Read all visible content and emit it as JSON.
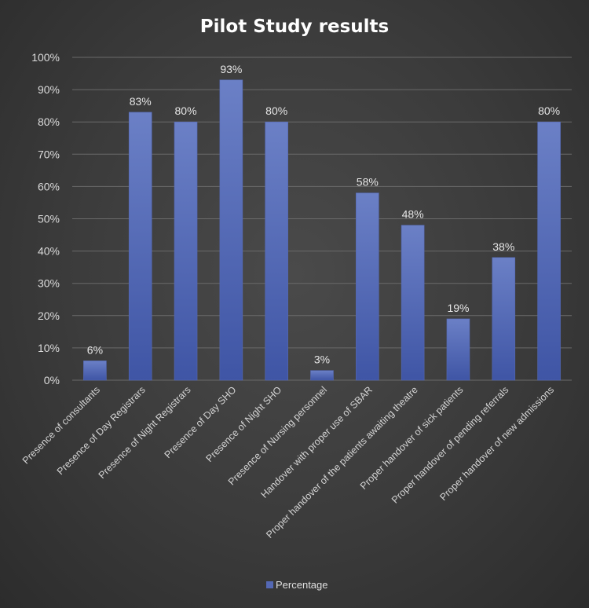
{
  "chart_data": {
    "type": "bar",
    "title": "Pilot Study results",
    "categories": [
      "Presence of consultants",
      "Presence of Day Registrars",
      "Presence of Night Registrars",
      "Presence of Day SHO",
      "Presence of Night SHO",
      "Presence of Nursing personnel",
      "Handover with proper use of SBAR",
      "Proper handover of the patients awaiting theatre",
      "Proper handover of sick patients",
      "Proper handover of pending referrals",
      "Proper handover of new admissions"
    ],
    "series": [
      {
        "name": "Percentage",
        "values": [
          6,
          83,
          80,
          93,
          80,
          3,
          58,
          48,
          19,
          38,
          80
        ]
      }
    ],
    "data_labels": [
      "6%",
      "83%",
      "80%",
      "93%",
      "80%",
      "3%",
      "58%",
      "48%",
      "19%",
      "38%",
      "80%"
    ],
    "y_ticks": [
      "0%",
      "10%",
      "20%",
      "30%",
      "40%",
      "50%",
      "60%",
      "70%",
      "80%",
      "90%",
      "100%"
    ],
    "ylim": [
      0,
      100
    ],
    "xlabel": "",
    "ylabel": "",
    "grid": true,
    "legend_position": "bottom",
    "colors": {
      "bar_top": "#6b80c6",
      "bar_bottom": "#3f55a5",
      "bar_edge": "#5468b4"
    }
  }
}
